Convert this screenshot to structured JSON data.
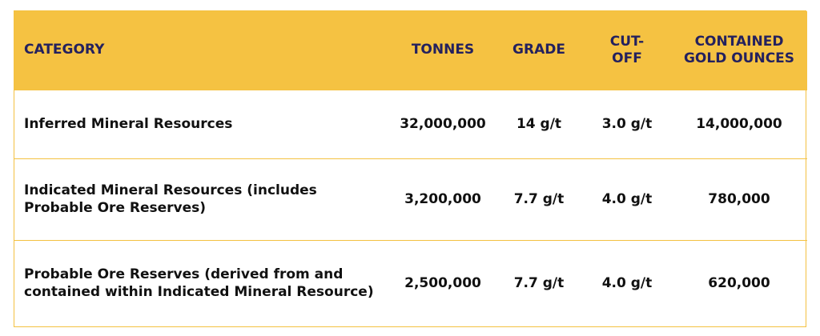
{
  "table": {
    "headers": {
      "category": "CATEGORY",
      "tonnes": "TONNES",
      "grade": "GRADE",
      "cutoff": "CUT-OFF",
      "contained_gold": "CONTAINED GOLD OUNCES"
    },
    "rows": [
      {
        "category": "Inferred Mineral Resources",
        "tonnes": "32,000,000",
        "grade": "14 g/t",
        "cutoff": "3.0 g/t",
        "contained_gold": "14,000,000"
      },
      {
        "category": "Indicated Mineral Resources (includes Probable Ore Reserves)",
        "tonnes": "3,200,000",
        "grade": "7.7 g/t",
        "cutoff": "4.0 g/t",
        "contained_gold": "780,000"
      },
      {
        "category": "Probable Ore Reserves (derived from and contained within Indicated Mineral Resource)",
        "tonnes": "2,500,000",
        "grade": "7.7 g/t",
        "cutoff": "4.0 g/t",
        "contained_gold": "620,000"
      }
    ]
  },
  "colors": {
    "header_background": "#f5c242",
    "header_text": "#24215e",
    "row_border": "#f4c141",
    "body_text": "#111111"
  }
}
